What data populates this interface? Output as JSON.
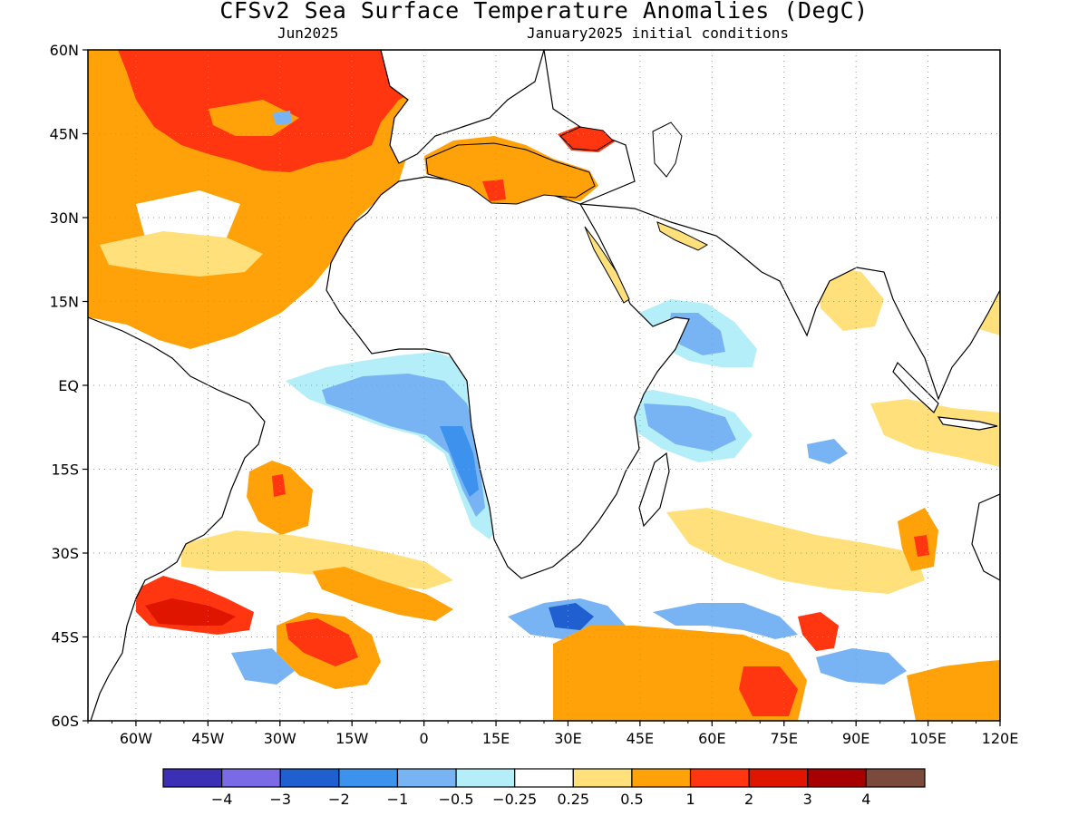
{
  "title": "CFSv2 Sea Surface Temperature Anomalies (DegC)",
  "subtitle_left": "Jun2025",
  "subtitle_right": "January2025 initial conditions",
  "map": {
    "lon_range": [
      -70,
      120
    ],
    "lat_range": [
      -60,
      60
    ],
    "lat_labels": [
      "60N",
      "45N",
      "30N",
      "15N",
      "EQ",
      "15S",
      "30S",
      "45S",
      "60S"
    ],
    "lon_labels": [
      "60W",
      "45W",
      "30W",
      "15W",
      "0",
      "15E",
      "30E",
      "45E",
      "60E",
      "75E",
      "90E",
      "105E",
      "120E"
    ],
    "grid": "dotted"
  },
  "colorbar": {
    "labels": [
      "−4",
      "−3",
      "−2",
      "−1",
      "−0.5",
      "−0.25",
      "0.25",
      "0.5",
      "1",
      "2",
      "3",
      "4"
    ],
    "colors": [
      "#3a2fb5",
      "#7a6ae6",
      "#1f5fd0",
      "#3d92ee",
      "#78b4f3",
      "#b4eef8",
      "#ffffff",
      "#ffe07a",
      "#ffa20a",
      "#ff3610",
      "#df1500",
      "#a60000",
      "#7a4a3c"
    ]
  }
}
